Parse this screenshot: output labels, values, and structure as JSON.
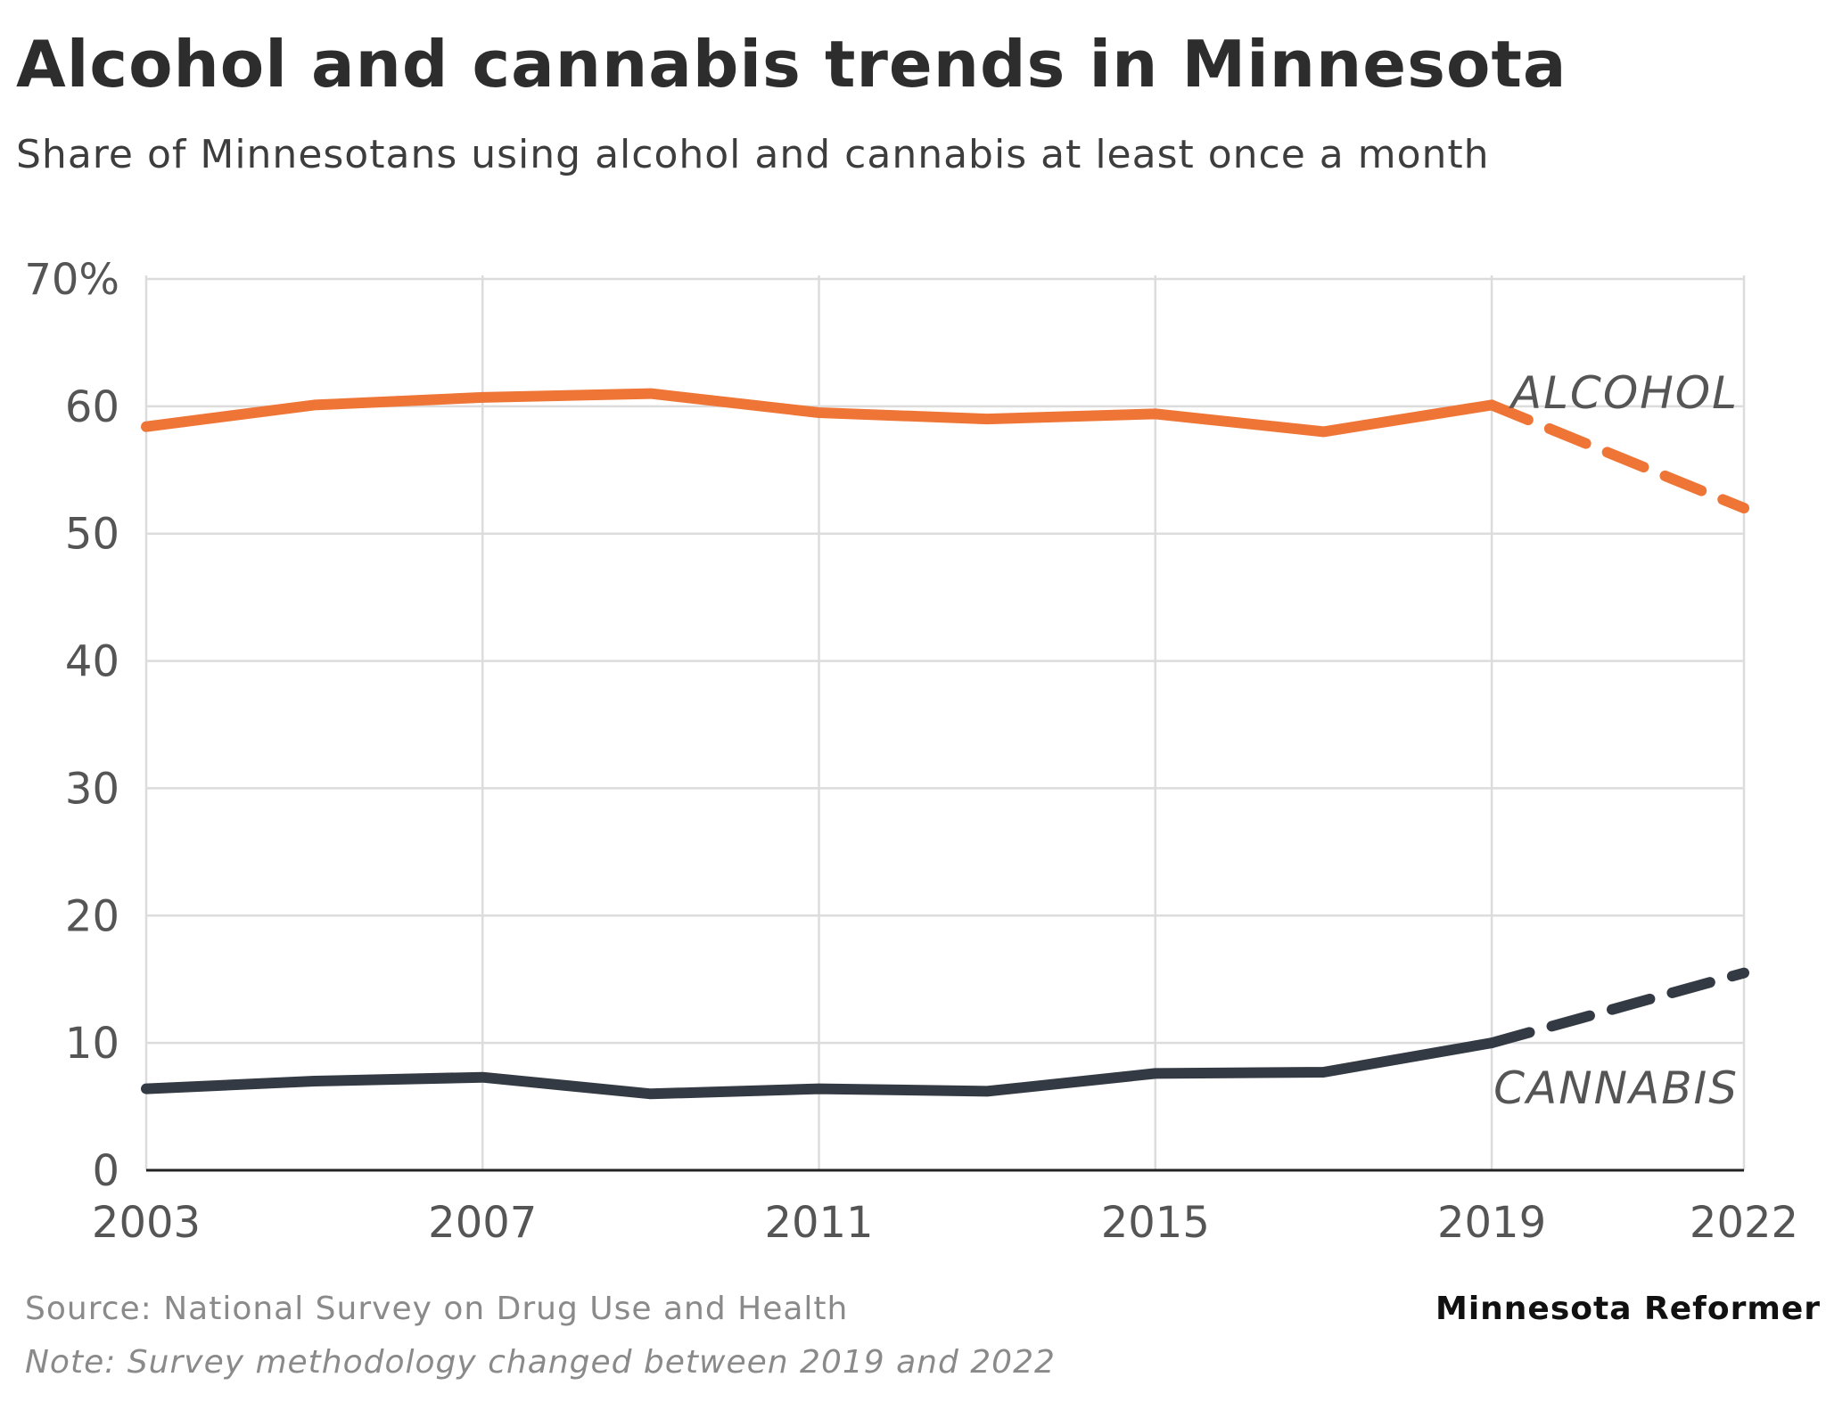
{
  "title": "Alcohol and cannabis trends in Minnesota",
  "subtitle": "Share of Minnesotans using alcohol and cannabis at least once a month",
  "footer": {
    "source": "Source: National Survey on Drug Use and Health",
    "note": "Note: Survey methodology changed between 2019 and 2022",
    "brand": "Minnesota Reformer"
  },
  "colors": {
    "alcohol": "#ee7536",
    "cannabis": "#343a44",
    "grid": "#dcdcdc",
    "axis": "#222222",
    "tick_text": "#555555"
  },
  "chart_data": {
    "type": "line",
    "title": "Alcohol and cannabis trends in Minnesota",
    "xlabel": "",
    "ylabel": "",
    "xlim": [
      2003,
      2022
    ],
    "ylim": [
      0,
      70
    ],
    "x_ticks": [
      2003,
      2007,
      2011,
      2015,
      2019,
      2022
    ],
    "x_tick_labels": [
      "2003",
      "2007",
      "2011",
      "2015",
      "2019",
      "2022"
    ],
    "y_ticks": [
      0,
      10,
      20,
      30,
      40,
      50,
      60,
      70
    ],
    "y_tick_labels": [
      "0",
      "10",
      "20",
      "30",
      "40",
      "50",
      "60",
      "70%"
    ],
    "grid": true,
    "dashed_from": 2019,
    "series": [
      {
        "name": "Alcohol",
        "label": "ALCOHOL",
        "color_key": "alcohol",
        "x": [
          2003,
          2005,
          2007,
          2009,
          2011,
          2013,
          2015,
          2017,
          2019,
          2022
        ],
        "y": [
          58.4,
          60.1,
          60.7,
          61.0,
          59.5,
          59.0,
          59.4,
          58.0,
          60.1,
          52.0
        ]
      },
      {
        "name": "Cannabis",
        "label": "CANNABIS",
        "color_key": "cannabis",
        "x": [
          2003,
          2005,
          2007,
          2009,
          2011,
          2013,
          2015,
          2017,
          2019,
          2022
        ],
        "y": [
          6.4,
          7.0,
          7.3,
          6.0,
          6.4,
          6.2,
          7.6,
          7.7,
          10.0,
          15.5
        ]
      }
    ]
  }
}
